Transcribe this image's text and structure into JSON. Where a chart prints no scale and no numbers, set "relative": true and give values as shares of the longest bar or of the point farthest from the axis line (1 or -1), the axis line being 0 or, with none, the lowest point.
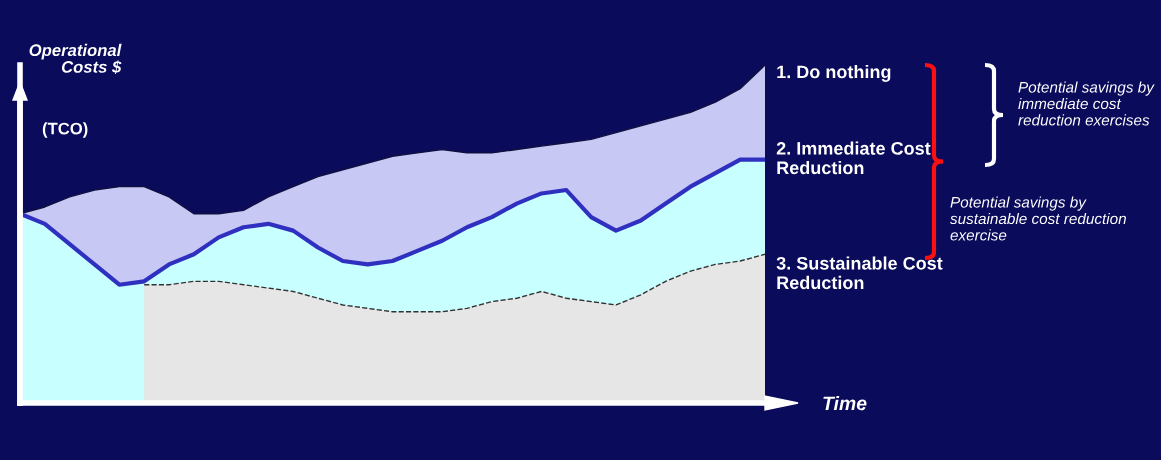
{
  "chart_data": {
    "type": "area",
    "relative": true,
    "xlabel": "Time",
    "ylabel": "Operational Costs $",
    "categories": [
      null,
      null,
      null,
      null,
      null,
      null,
      null,
      null,
      null,
      null,
      null,
      null,
      null,
      null,
      null,
      null,
      null,
      null,
      null,
      null,
      null,
      null,
      null,
      null,
      null,
      null,
      null,
      null,
      null,
      null,
      null
    ],
    "series": [
      {
        "name": "1. Do nothing",
        "color": "#c8c8f5",
        "line_style": "solid",
        "values": [
          0.56,
          0.58,
          0.61,
          0.63,
          0.64,
          0.64,
          0.61,
          0.56,
          0.56,
          0.57,
          0.61,
          0.64,
          0.67,
          0.69,
          0.71,
          0.73,
          0.74,
          0.75,
          0.74,
          0.74,
          0.75,
          0.76,
          0.77,
          0.78,
          0.8,
          0.82,
          0.84,
          0.86,
          0.89,
          0.93,
          1.0
        ]
      },
      {
        "name": "2. Immediate Cost Reduction",
        "color": "#c8ffff",
        "line_style": "solid",
        "values": [
          0.56,
          0.53,
          0.47,
          0.41,
          0.35,
          0.36,
          0.41,
          0.44,
          0.49,
          0.52,
          0.53,
          0.51,
          0.46,
          0.42,
          0.41,
          0.42,
          0.45,
          0.48,
          0.52,
          0.55,
          0.59,
          0.62,
          0.63,
          0.55,
          0.51,
          0.54,
          0.59,
          0.64,
          0.68,
          0.72,
          0.72
        ]
      },
      {
        "name": "3. Sustainable Cost Reduction",
        "color": "#e6e6e6",
        "line_style": "dashed",
        "values": [
          null,
          null,
          null,
          null,
          null,
          0.35,
          0.35,
          0.36,
          0.36,
          0.35,
          0.34,
          0.33,
          0.31,
          0.29,
          0.28,
          0.27,
          0.27,
          0.27,
          0.28,
          0.3,
          0.31,
          0.33,
          0.31,
          0.3,
          0.29,
          0.32,
          0.36,
          0.39,
          0.41,
          0.42,
          0.44
        ]
      }
    ],
    "annotations": [
      "(TCO)",
      "Potential savings by immediate cost reduction exercises",
      "Potential savings by sustainable cost reduction exercise"
    ],
    "legend": false,
    "marker": "none"
  }
}
